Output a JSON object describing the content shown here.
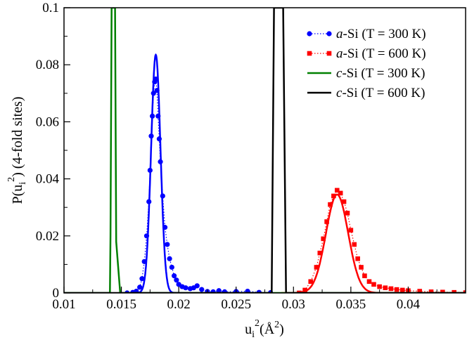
{
  "chart_data": {
    "type": "line",
    "xlabel": {
      "base": "u",
      "sub": "i",
      "sup": "2",
      "rest": "(Å",
      "rest_sup": "2",
      "rest_end": ")"
    },
    "ylabel": {
      "pre": "P(u",
      "sub": "i",
      "sup": "2",
      "post": ") (4-fold sites)"
    },
    "xlim": [
      0.01,
      0.045
    ],
    "ylim": [
      0,
      0.1
    ],
    "xticks": [
      0.01,
      0.015,
      0.02,
      0.025,
      0.03,
      0.035,
      0.04
    ],
    "xtick_labels": [
      "0.01",
      "0.015",
      "0.02",
      "0.025",
      "0.03",
      "0.035",
      "0.04"
    ],
    "yticks": [
      0,
      0.02,
      0.04,
      0.06,
      0.08,
      0.1
    ],
    "ytick_labels": [
      "0",
      "0.02",
      "0.04",
      "0.06",
      "0.08",
      "0.1"
    ],
    "legend_position": "top-right",
    "series": [
      {
        "name_pre": "a",
        "name_post": "-Si (T = 300 K)",
        "color": "#0000ff",
        "marker": "circle",
        "style": "dotted-markers-with-fit",
        "points": [
          [
            0.0155,
            0.0
          ],
          [
            0.016,
            0.0002
          ],
          [
            0.0163,
            0.0006
          ],
          [
            0.0166,
            0.002
          ],
          [
            0.0168,
            0.005
          ],
          [
            0.017,
            0.011
          ],
          [
            0.0172,
            0.02
          ],
          [
            0.0174,
            0.032
          ],
          [
            0.0175,
            0.043
          ],
          [
            0.0176,
            0.055
          ],
          [
            0.0177,
            0.062
          ],
          [
            0.0178,
            0.07
          ],
          [
            0.0179,
            0.074
          ],
          [
            0.018,
            0.075
          ],
          [
            0.0181,
            0.071
          ],
          [
            0.0182,
            0.062
          ],
          [
            0.0183,
            0.054
          ],
          [
            0.0184,
            0.046
          ],
          [
            0.0186,
            0.034
          ],
          [
            0.0188,
            0.023
          ],
          [
            0.019,
            0.017
          ],
          [
            0.0192,
            0.012
          ],
          [
            0.0194,
            0.009
          ],
          [
            0.0196,
            0.006
          ],
          [
            0.0198,
            0.0045
          ],
          [
            0.02,
            0.003
          ],
          [
            0.0203,
            0.0022
          ],
          [
            0.0206,
            0.0018
          ],
          [
            0.021,
            0.0015
          ],
          [
            0.0213,
            0.0018
          ],
          [
            0.0216,
            0.0025
          ],
          [
            0.022,
            0.0012
          ],
          [
            0.0225,
            0.0005
          ],
          [
            0.023,
            0.0004
          ],
          [
            0.0235,
            0.0008
          ],
          [
            0.024,
            0.0004
          ],
          [
            0.025,
            0.0005
          ],
          [
            0.026,
            0.0006
          ],
          [
            0.027,
            0.0002
          ],
          [
            0.028,
            0.0001
          ]
        ],
        "fit": {
          "mu": 0.018,
          "sigma": 0.00041,
          "amp": 0.0835
        }
      },
      {
        "name_pre": "a",
        "name_post": "-Si (T = 600 K)",
        "color": "#ff0000",
        "marker": "square",
        "style": "dotted-markers-with-fit",
        "points": [
          [
            0.0305,
            0.0
          ],
          [
            0.031,
            0.001
          ],
          [
            0.0315,
            0.004
          ],
          [
            0.032,
            0.009
          ],
          [
            0.0323,
            0.014
          ],
          [
            0.0326,
            0.019
          ],
          [
            0.0329,
            0.025
          ],
          [
            0.0332,
            0.031
          ],
          [
            0.0335,
            0.034
          ],
          [
            0.0338,
            0.036
          ],
          [
            0.0341,
            0.035
          ],
          [
            0.0344,
            0.032
          ],
          [
            0.0347,
            0.028
          ],
          [
            0.035,
            0.022
          ],
          [
            0.0353,
            0.017
          ],
          [
            0.0356,
            0.012
          ],
          [
            0.0359,
            0.009
          ],
          [
            0.0362,
            0.006
          ],
          [
            0.0366,
            0.004
          ],
          [
            0.037,
            0.003
          ],
          [
            0.0375,
            0.0022
          ],
          [
            0.038,
            0.0018
          ],
          [
            0.0385,
            0.0015
          ],
          [
            0.039,
            0.0012
          ],
          [
            0.0395,
            0.001
          ],
          [
            0.04,
            0.0008
          ],
          [
            0.041,
            0.0006
          ],
          [
            0.042,
            0.0004
          ],
          [
            0.043,
            0.0003
          ],
          [
            0.044,
            0.0002
          ],
          [
            0.045,
            0.0001
          ]
        ],
        "fit": {
          "mu": 0.0338,
          "sigma": 0.00097,
          "amp": 0.0345
        }
      },
      {
        "name_pre": "c",
        "name_post": "-Si (T = 300 K)",
        "color": "#008000",
        "marker": "none",
        "style": "line",
        "points": [
          [
            0.01,
            0.0
          ],
          [
            0.014,
            0.0
          ],
          [
            0.01405,
            0.02
          ],
          [
            0.01415,
            0.1
          ],
          [
            0.01445,
            0.1
          ],
          [
            0.01455,
            0.018
          ],
          [
            0.0149,
            0.0
          ],
          [
            0.045,
            0.0
          ]
        ]
      },
      {
        "name_pre": "c",
        "name_post": "-Si (T = 600 K)",
        "color": "#000000",
        "marker": "none",
        "style": "line",
        "points": [
          [
            0.01,
            0.0
          ],
          [
            0.0281,
            0.0
          ],
          [
            0.0283,
            0.1
          ],
          [
            0.0291,
            0.1
          ],
          [
            0.02935,
            0.0
          ],
          [
            0.045,
            0.0
          ]
        ]
      }
    ]
  }
}
